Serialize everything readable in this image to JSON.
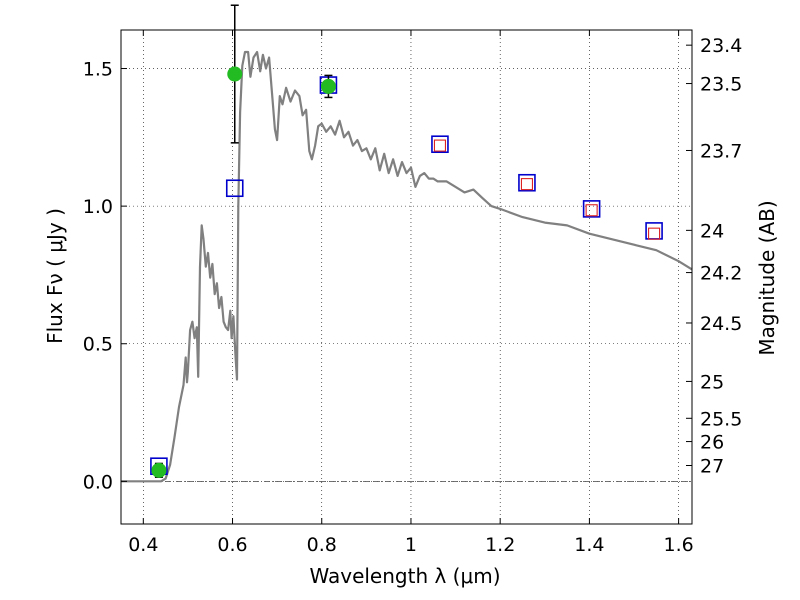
{
  "chart_data": {
    "type": "scatter",
    "xlabel": "Wavelength  λ (μm)",
    "ylabel": "Flux  Fν  ( μJy )",
    "ylabel_right": "Magnitude (AB)",
    "xlim": [
      0.35,
      1.63
    ],
    "ylim": [
      -0.155,
      1.64
    ],
    "grid": true,
    "x_ticks": [
      {
        "v": 0.4,
        "label": "0.4"
      },
      {
        "v": 0.6,
        "label": "0.6"
      },
      {
        "v": 0.8,
        "label": "0.8"
      },
      {
        "v": 1.0,
        "label": "1"
      },
      {
        "v": 1.2,
        "label": "1.2"
      },
      {
        "v": 1.4,
        "label": "1.4"
      },
      {
        "v": 1.6,
        "label": "1.6"
      }
    ],
    "y_ticks": [
      {
        "v": 0.0,
        "label": "0.0"
      },
      {
        "v": 0.5,
        "label": "0.5"
      },
      {
        "v": 1.0,
        "label": "1.0"
      },
      {
        "v": 1.5,
        "label": "1.5"
      }
    ],
    "mag_ticks": [
      {
        "v": 23.4,
        "label": "23.4"
      },
      {
        "v": 23.5,
        "label": "23.5"
      },
      {
        "v": 23.7,
        "label": "23.7"
      },
      {
        "v": 24,
        "label": "24"
      },
      {
        "v": 24.2,
        "label": "24.2"
      },
      {
        "v": 24.5,
        "label": "24.5"
      },
      {
        "v": 25,
        "label": "25"
      },
      {
        "v": 25.5,
        "label": "25.5"
      },
      {
        "v": 26,
        "label": "26"
      },
      {
        "v": 27,
        "label": "27"
      }
    ],
    "model_spectrum": {
      "color": "#808080",
      "points": [
        [
          0.35,
          0.0
        ],
        [
          0.44,
          0.0
        ],
        [
          0.45,
          0.01
        ],
        [
          0.46,
          0.06
        ],
        [
          0.47,
          0.16
        ],
        [
          0.48,
          0.27
        ],
        [
          0.49,
          0.35
        ],
        [
          0.495,
          0.45
        ],
        [
          0.498,
          0.36
        ],
        [
          0.5,
          0.4
        ],
        [
          0.505,
          0.55
        ],
        [
          0.51,
          0.58
        ],
        [
          0.515,
          0.52
        ],
        [
          0.52,
          0.56
        ],
        [
          0.523,
          0.38
        ],
        [
          0.527,
          0.78
        ],
        [
          0.531,
          0.93
        ],
        [
          0.535,
          0.88
        ],
        [
          0.54,
          0.78
        ],
        [
          0.545,
          0.83
        ],
        [
          0.55,
          0.74
        ],
        [
          0.555,
          0.79
        ],
        [
          0.56,
          0.68
        ],
        [
          0.565,
          0.72
        ],
        [
          0.57,
          0.63
        ],
        [
          0.575,
          0.67
        ],
        [
          0.58,
          0.58
        ],
        [
          0.585,
          0.56
        ],
        [
          0.59,
          0.55
        ],
        [
          0.595,
          0.62
        ],
        [
          0.598,
          0.52
        ],
        [
          0.602,
          0.6
        ],
        [
          0.607,
          0.45
        ],
        [
          0.61,
          0.37
        ],
        [
          0.613,
          1.0
        ],
        [
          0.617,
          1.34
        ],
        [
          0.622,
          1.51
        ],
        [
          0.628,
          1.56
        ],
        [
          0.635,
          1.56
        ],
        [
          0.64,
          1.47
        ],
        [
          0.647,
          1.54
        ],
        [
          0.655,
          1.56
        ],
        [
          0.662,
          1.49
        ],
        [
          0.668,
          1.55
        ],
        [
          0.675,
          1.5
        ],
        [
          0.682,
          1.54
        ],
        [
          0.69,
          1.38
        ],
        [
          0.695,
          1.28
        ],
        [
          0.7,
          1.24
        ],
        [
          0.706,
          1.4
        ],
        [
          0.712,
          1.37
        ],
        [
          0.72,
          1.43
        ],
        [
          0.73,
          1.38
        ],
        [
          0.74,
          1.42
        ],
        [
          0.75,
          1.4
        ],
        [
          0.757,
          1.33
        ],
        [
          0.765,
          1.35
        ],
        [
          0.772,
          1.2
        ],
        [
          0.778,
          1.17
        ],
        [
          0.785,
          1.22
        ],
        [
          0.792,
          1.29
        ],
        [
          0.8,
          1.3
        ],
        [
          0.81,
          1.27
        ],
        [
          0.82,
          1.29
        ],
        [
          0.83,
          1.26
        ],
        [
          0.84,
          1.31
        ],
        [
          0.85,
          1.25
        ],
        [
          0.86,
          1.27
        ],
        [
          0.87,
          1.22
        ],
        [
          0.88,
          1.24
        ],
        [
          0.89,
          1.2
        ],
        [
          0.9,
          1.21
        ],
        [
          0.91,
          1.17
        ],
        [
          0.92,
          1.21
        ],
        [
          0.93,
          1.13
        ],
        [
          0.94,
          1.19
        ],
        [
          0.95,
          1.12
        ],
        [
          0.96,
          1.17
        ],
        [
          0.97,
          1.11
        ],
        [
          0.98,
          1.16
        ],
        [
          0.99,
          1.12
        ],
        [
          1.0,
          1.14
        ],
        [
          1.01,
          1.07
        ],
        [
          1.02,
          1.11
        ],
        [
          1.03,
          1.12
        ],
        [
          1.04,
          1.1
        ],
        [
          1.05,
          1.1
        ],
        [
          1.06,
          1.09
        ],
        [
          1.08,
          1.09
        ],
        [
          1.1,
          1.07
        ],
        [
          1.12,
          1.05
        ],
        [
          1.14,
          1.06
        ],
        [
          1.16,
          1.03
        ],
        [
          1.18,
          1.0
        ],
        [
          1.2,
          0.99
        ],
        [
          1.25,
          0.96
        ],
        [
          1.3,
          0.94
        ],
        [
          1.35,
          0.93
        ],
        [
          1.4,
          0.9
        ],
        [
          1.45,
          0.88
        ],
        [
          1.5,
          0.86
        ],
        [
          1.55,
          0.84
        ],
        [
          1.6,
          0.8
        ],
        [
          1.63,
          0.77
        ]
      ]
    },
    "series": [
      {
        "marker": "filled-circle",
        "color": "#22bb22",
        "points": [
          {
            "x": 0.435,
            "y": 0.04,
            "err": 0.025
          },
          {
            "x": 0.605,
            "y": 1.48,
            "err": 0.25
          },
          {
            "x": 0.815,
            "y": 1.435,
            "err": 0.04
          }
        ]
      },
      {
        "marker": "open-square",
        "color": "#0000cc",
        "points": [
          {
            "x": 0.435,
            "y": 0.055
          },
          {
            "x": 0.605,
            "y": 1.065
          },
          {
            "x": 0.815,
            "y": 1.44
          },
          {
            "x": 1.065,
            "y": 1.225
          },
          {
            "x": 1.26,
            "y": 1.085
          },
          {
            "x": 1.405,
            "y": 0.99
          },
          {
            "x": 1.545,
            "y": 0.91
          }
        ]
      },
      {
        "marker": "open-square-small",
        "color": "#dd2222",
        "points": [
          {
            "x": 1.065,
            "y": 1.22
          },
          {
            "x": 1.26,
            "y": 1.08
          },
          {
            "x": 1.405,
            "y": 0.985
          },
          {
            "x": 1.545,
            "y": 0.9
          }
        ]
      }
    ]
  }
}
